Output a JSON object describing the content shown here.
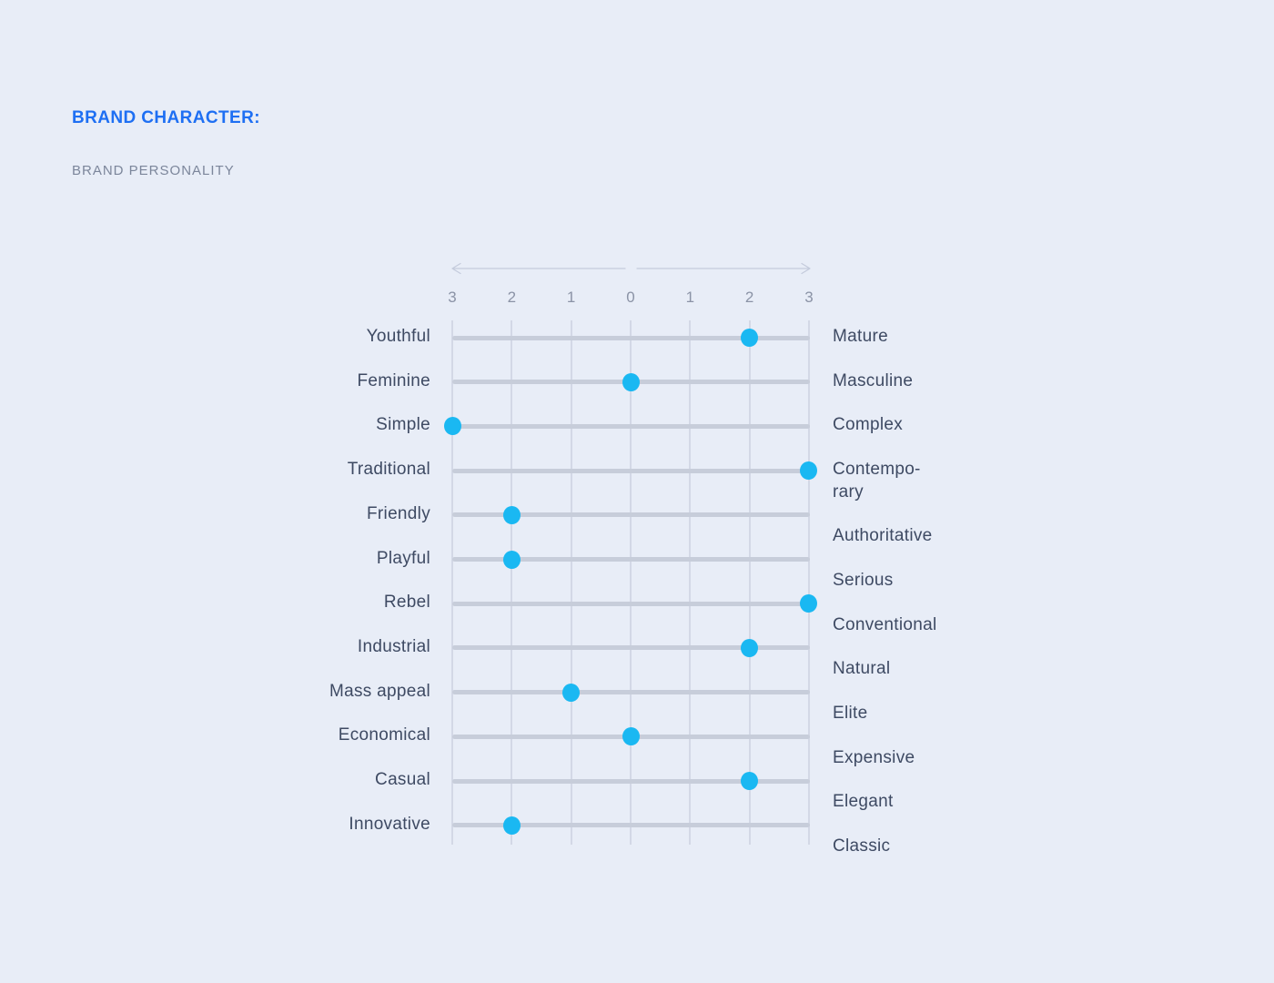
{
  "page": {
    "background": "#e8edf7"
  },
  "header": {
    "title": "BRAND CHARACTER:",
    "subtitle": "BRAND PERSONALITY",
    "title_color": "#1e6ff3",
    "subtitle_color": "#7c869b"
  },
  "chart_data": {
    "type": "scatter",
    "subtype": "semantic-differential-dot-plot",
    "title": "BRAND CHARACTER: BRAND PERSONALITY",
    "axis": {
      "tick_labels": [
        "3",
        "2",
        "1",
        "0",
        "1",
        "2",
        "3"
      ],
      "tick_values": [
        -3,
        -2,
        -1,
        0,
        1,
        2,
        3
      ],
      "range": [
        -3,
        3
      ],
      "grid": true,
      "arrows": "outward-from-center"
    },
    "rows": [
      {
        "left": "Youthful",
        "right": "Mature",
        "value": 2
      },
      {
        "left": "Feminine",
        "right": "Masculine",
        "value": 0
      },
      {
        "left": "Simple",
        "right": "Complex",
        "value": -3
      },
      {
        "left": "Traditional",
        "right": "Contempo-\nrary",
        "value": 3
      },
      {
        "left": "Friendly",
        "right": "Authoritative",
        "value": -2
      },
      {
        "left": "Playful",
        "right": "Serious",
        "value": -2
      },
      {
        "left": "Rebel",
        "right": "Conventional",
        "value": 3
      },
      {
        "left": "Industrial",
        "right": "Natural",
        "value": 2
      },
      {
        "left": "Mass appeal",
        "right": "Elite",
        "value": -1
      },
      {
        "left": "Economical",
        "right": "Expensive",
        "value": 0
      },
      {
        "left": "Casual",
        "right": "Elegant",
        "value": 2
      },
      {
        "left": "Innovative",
        "right": "Classic",
        "value": -2
      }
    ],
    "colors": {
      "dot": "#1ab8f2",
      "track": "#c7cdda",
      "gridline": "#d3d8e6",
      "tick_label": "#8b93a6",
      "trait_label": "#3e4a63",
      "arrow": "#c4cbdc"
    }
  }
}
